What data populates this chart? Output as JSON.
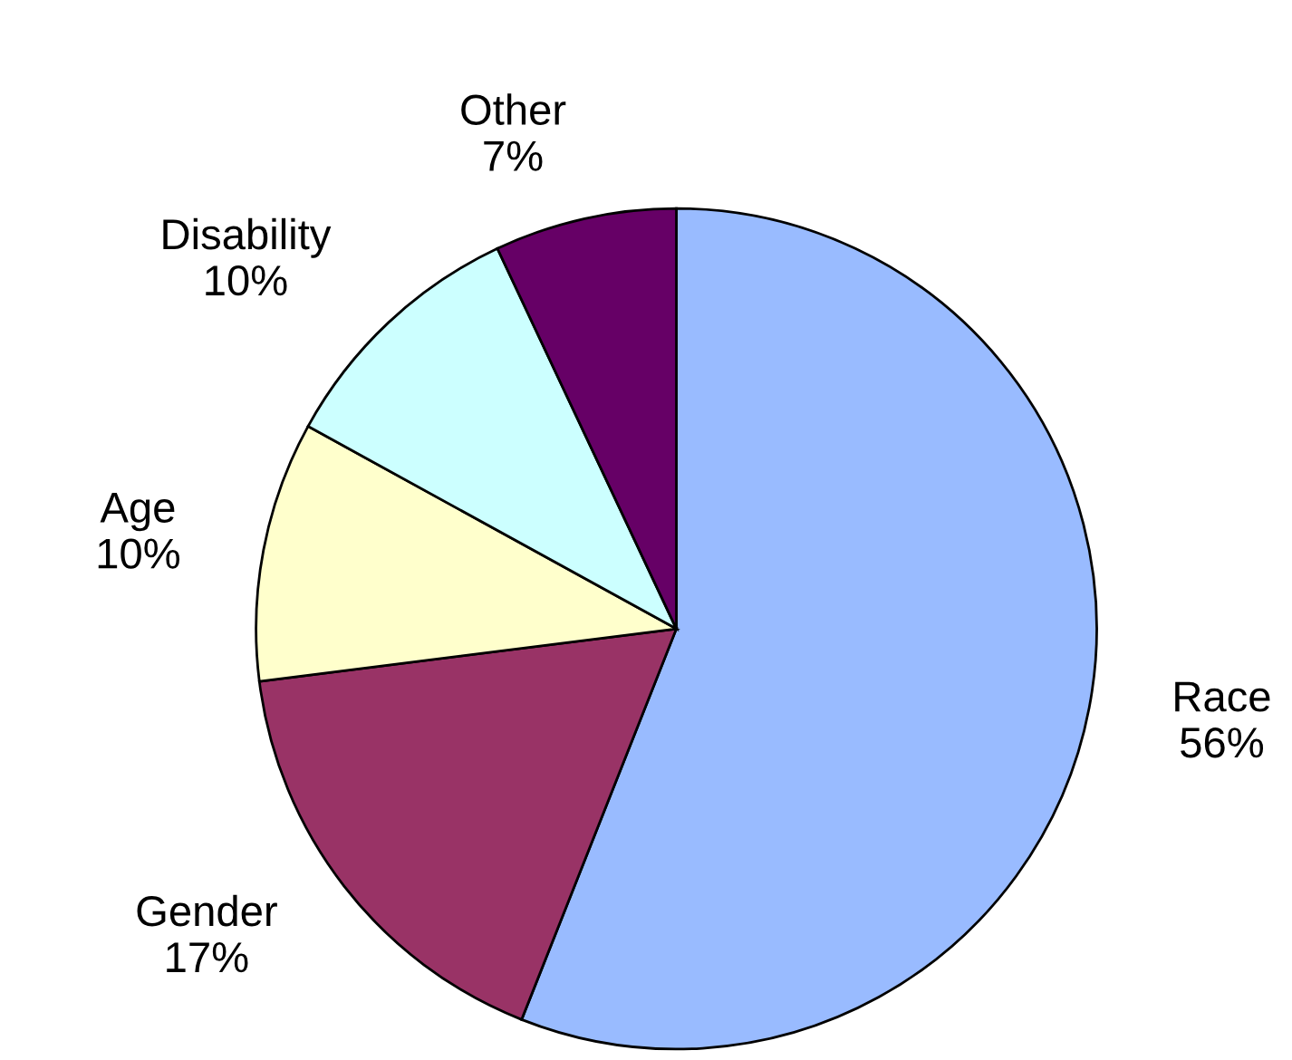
{
  "chart_data": {
    "type": "pie",
    "categories": [
      "Race",
      "Gender",
      "Age",
      "Disability",
      "Other"
    ],
    "values": [
      56,
      17,
      10,
      10,
      7
    ],
    "value_labels": [
      "56%",
      "17%",
      "10%",
      "10%",
      "7%"
    ],
    "colors": [
      "#99bbff",
      "#993366",
      "#ffffcc",
      "#ccffff",
      "#660066"
    ]
  }
}
